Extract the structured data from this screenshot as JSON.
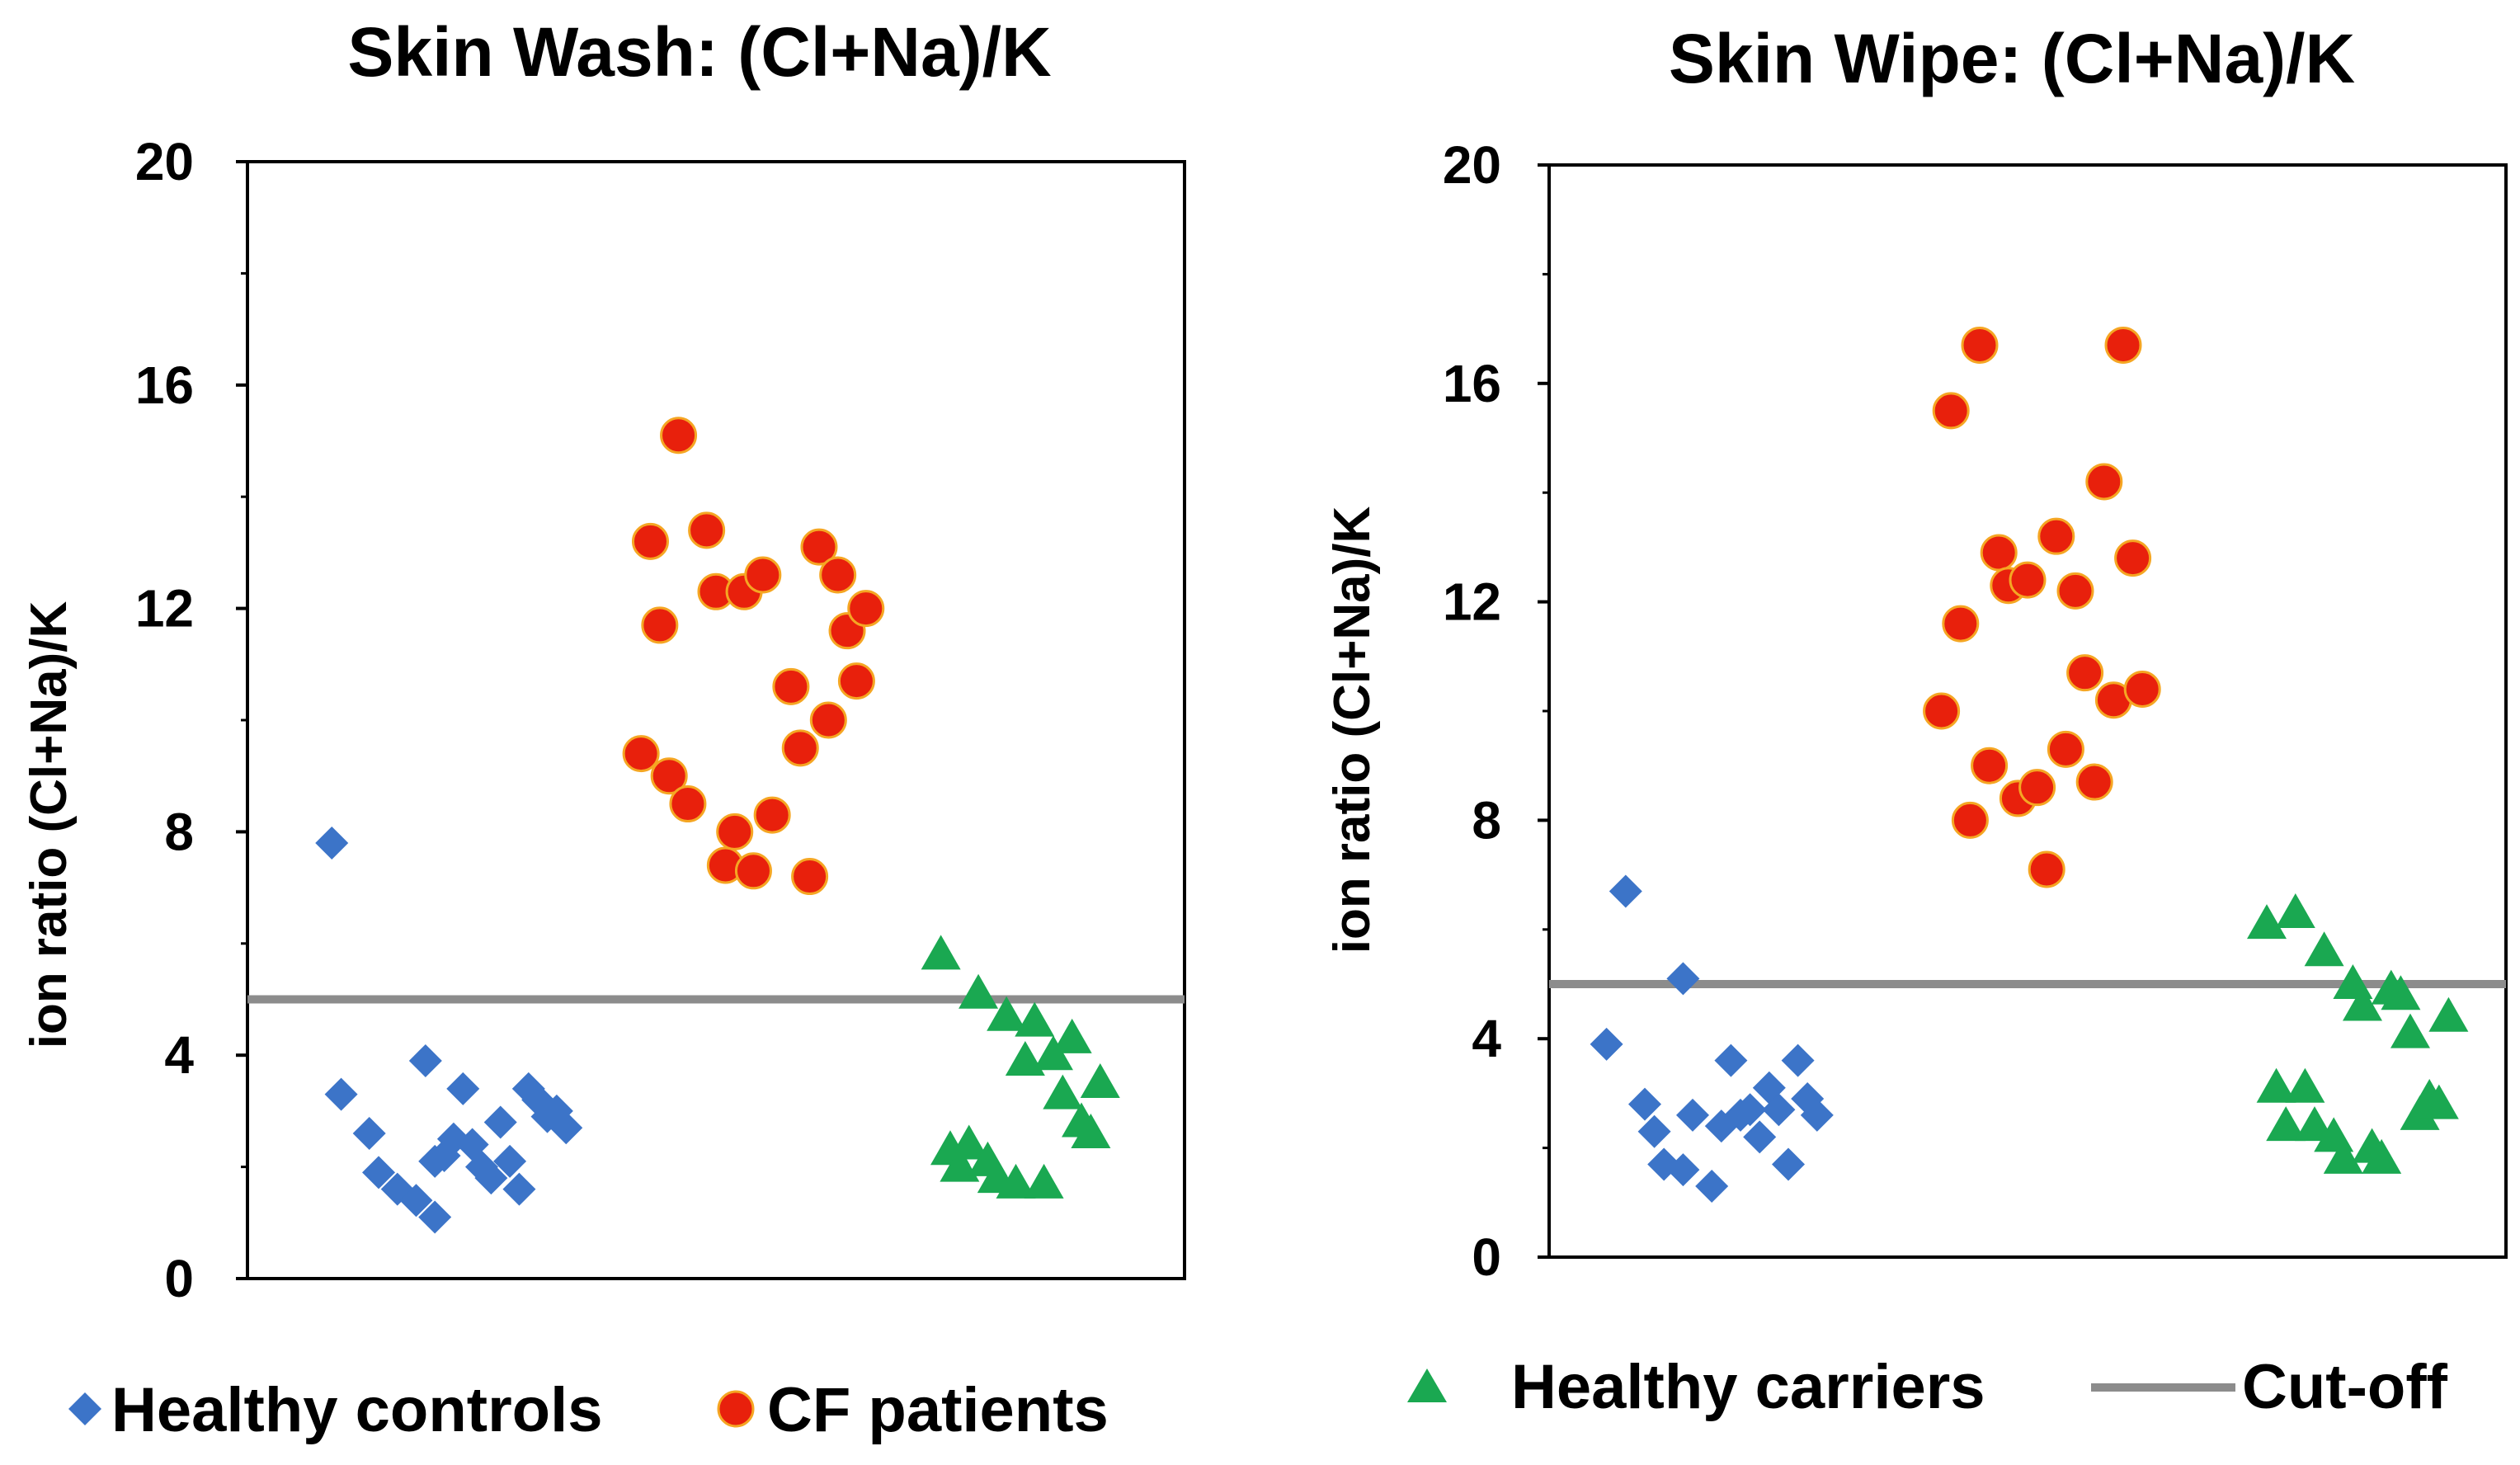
{
  "chart_data": [
    {
      "type": "scatter",
      "title": "Skin Wash: (Cl+Na)/K",
      "xlabel": "",
      "ylabel": "ion ratio (Cl+Na)/K",
      "ylim": [
        0,
        20
      ],
      "yticks": [
        "0",
        "4",
        "8",
        "12",
        "16",
        "20"
      ],
      "cutoff": 5,
      "series": [
        {
          "name": "Healthy controls",
          "marker": "diamond",
          "color": "#3c74c8",
          "x": [
            0.09,
            0.1,
            0.13,
            0.14,
            0.16,
            0.18,
            0.19,
            0.2,
            0.2,
            0.21,
            0.22,
            0.23,
            0.24,
            0.25,
            0.26,
            0.27,
            0.28,
            0.29,
            0.3,
            0.31,
            0.32,
            0.33,
            0.34
          ],
          "y": [
            7.8,
            3.3,
            2.6,
            1.9,
            1.6,
            1.4,
            3.9,
            2.1,
            1.1,
            2.2,
            2.5,
            3.4,
            2.4,
            2.0,
            1.8,
            2.8,
            2.1,
            1.6,
            3.4,
            3.2,
            2.9,
            3.0,
            2.7
          ]
        },
        {
          "name": "CF patients",
          "marker": "circle",
          "color": "#e8200c",
          "x": [
            0.42,
            0.43,
            0.44,
            0.45,
            0.46,
            0.47,
            0.49,
            0.5,
            0.51,
            0.52,
            0.53,
            0.54,
            0.55,
            0.56,
            0.58,
            0.59,
            0.6,
            0.61,
            0.62,
            0.63,
            0.64,
            0.65,
            0.66
          ],
          "y": [
            9.4,
            13.2,
            11.7,
            9.0,
            15.1,
            8.5,
            13.4,
            12.3,
            7.4,
            8.0,
            12.3,
            7.3,
            12.6,
            8.3,
            10.6,
            9.5,
            7.2,
            13.1,
            10.0,
            12.6,
            11.6,
            10.7,
            12.0
          ]
        },
        {
          "name": "Healthy carriers",
          "marker": "triangle",
          "color": "#1aa851",
          "x": [
            0.74,
            0.75,
            0.76,
            0.77,
            0.78,
            0.79,
            0.8,
            0.81,
            0.82,
            0.83,
            0.84,
            0.85,
            0.86,
            0.87,
            0.88,
            0.89,
            0.9,
            0.91
          ],
          "y": [
            5.8,
            2.3,
            2.0,
            2.4,
            5.1,
            2.1,
            1.8,
            4.7,
            1.7,
            3.9,
            4.6,
            1.7,
            4.0,
            3.3,
            4.3,
            2.8,
            2.6,
            3.5
          ]
        }
      ]
    },
    {
      "type": "scatter",
      "title": "Skin Wipe: (Cl+Na)/K",
      "xlabel": "",
      "ylabel": "ion ratio (Cl+Na)/K",
      "ylim": [
        0,
        20
      ],
      "yticks": [
        "0",
        "4",
        "8",
        "12",
        "16",
        "20"
      ],
      "cutoff": 5,
      "series": [
        {
          "name": "Healthy controls",
          "marker": "diamond",
          "color": "#3c74c8",
          "x": [
            0.06,
            0.08,
            0.1,
            0.11,
            0.12,
            0.14,
            0.14,
            0.15,
            0.17,
            0.18,
            0.19,
            0.2,
            0.21,
            0.22,
            0.23,
            0.24,
            0.25,
            0.26,
            0.27,
            0.28
          ],
          "y": [
            3.9,
            6.7,
            2.8,
            2.3,
            1.7,
            1.6,
            5.1,
            2.6,
            1.3,
            2.4,
            3.6,
            2.6,
            2.7,
            2.2,
            3.1,
            2.7,
            1.7,
            3.6,
            2.9,
            2.6
          ]
        },
        {
          "name": "CF patients",
          "marker": "circle",
          "color": "#e8200c",
          "x": [
            0.41,
            0.42,
            0.43,
            0.44,
            0.45,
            0.46,
            0.47,
            0.48,
            0.49,
            0.5,
            0.51,
            0.52,
            0.53,
            0.54,
            0.55,
            0.56,
            0.57,
            0.58,
            0.59,
            0.6,
            0.61,
            0.62
          ],
          "y": [
            10.0,
            15.5,
            11.6,
            8.0,
            16.7,
            9.0,
            12.9,
            12.3,
            8.4,
            12.4,
            8.6,
            7.1,
            13.2,
            9.3,
            12.2,
            10.7,
            8.7,
            14.2,
            10.2,
            16.7,
            12.8,
            10.4
          ]
        },
        {
          "name": "Healthy carriers",
          "marker": "triangle",
          "color": "#1aa851",
          "x": [
            0.75,
            0.76,
            0.77,
            0.78,
            0.79,
            0.8,
            0.81,
            0.82,
            0.83,
            0.84,
            0.85,
            0.86,
            0.87,
            0.88,
            0.89,
            0.9,
            0.91,
            0.92,
            0.93,
            0.94
          ],
          "y": [
            6.1,
            3.1,
            2.4,
            6.3,
            3.1,
            2.4,
            5.6,
            2.2,
            1.8,
            5.0,
            4.6,
            2.0,
            1.8,
            4.9,
            4.8,
            4.1,
            2.6,
            2.9,
            2.8,
            4.4
          ]
        }
      ]
    }
  ],
  "legend": {
    "healthy_controls": "Healthy controls",
    "cf_patients": "CF patients",
    "healthy_carriers": "Healthy carriers",
    "cutoff": "Cut-off"
  },
  "colors": {
    "controls": "#3c74c8",
    "cf": "#e8200c",
    "carriers": "#1aa851",
    "cutoff": "#8c8c8c"
  }
}
